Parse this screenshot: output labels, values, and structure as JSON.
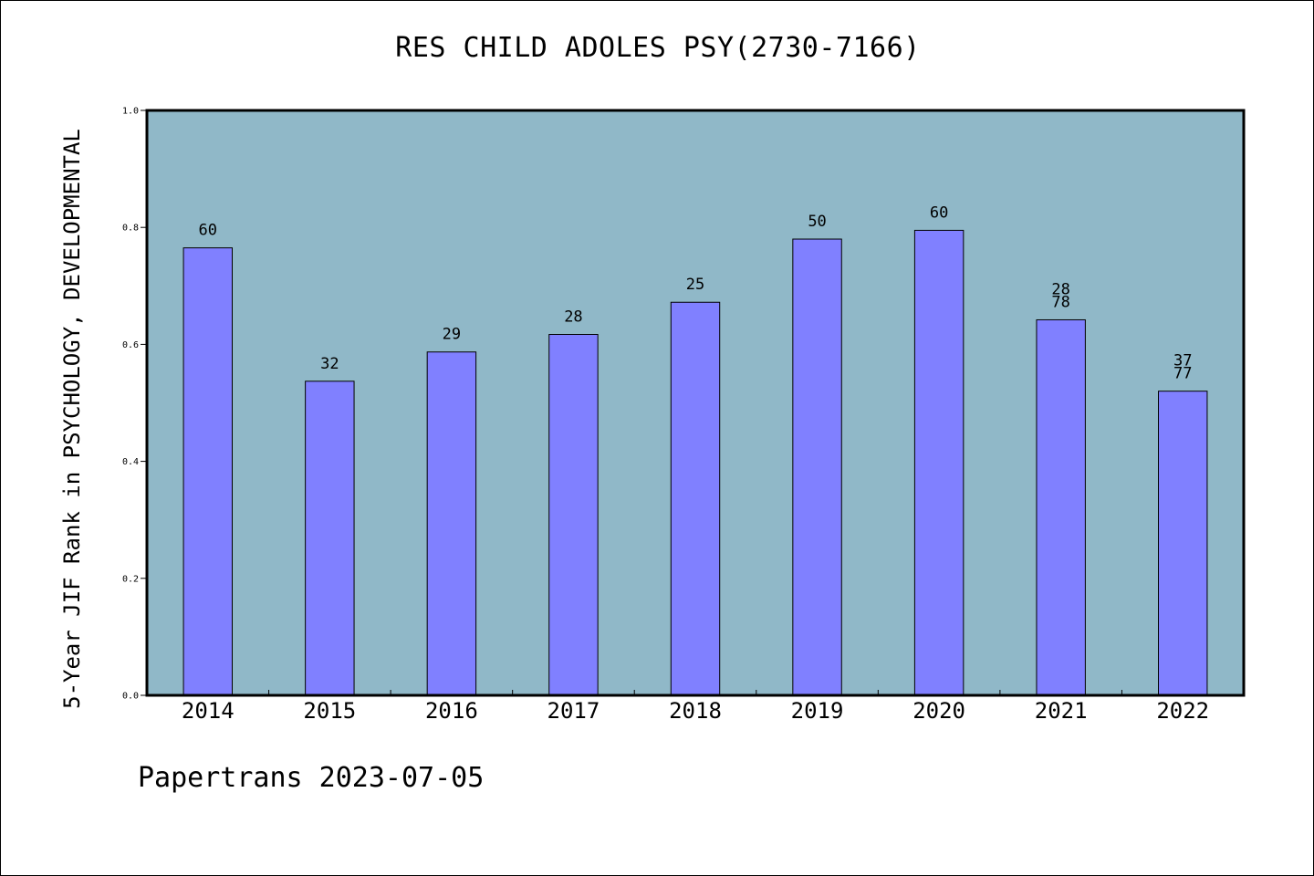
{
  "chart_data": {
    "type": "bar",
    "title": "RES CHILD ADOLES PSY(2730-7166)",
    "xlabel": "",
    "ylabel": "5-Year JIF Rank in PSYCHOLOGY, DEVELOPMENTAL",
    "categories": [
      "2014",
      "2015",
      "2016",
      "2017",
      "2018",
      "2019",
      "2020",
      "2021",
      "2022"
    ],
    "values": [
      0.765,
      0.537,
      0.587,
      0.617,
      0.672,
      0.78,
      0.795,
      0.642,
      0.52
    ],
    "data_labels": [
      [
        "60"
      ],
      [
        "32"
      ],
      [
        "29"
      ],
      [
        "28"
      ],
      [
        "25"
      ],
      [
        "50"
      ],
      [
        "60"
      ],
      [
        "28",
        "78"
      ],
      [
        "37",
        "77"
      ]
    ],
    "ylim": [
      0,
      1.0
    ],
    "yticks": [
      "0.0",
      "0.2",
      "0.4",
      "0.6",
      "0.8",
      "1.0"
    ],
    "grid": false,
    "colors": {
      "bar_fill": "#8080ff",
      "plot_background": "#90b8c8",
      "bar_edge": "#000000"
    }
  },
  "footer": {
    "text": "Papertrans 2023-07-05"
  }
}
